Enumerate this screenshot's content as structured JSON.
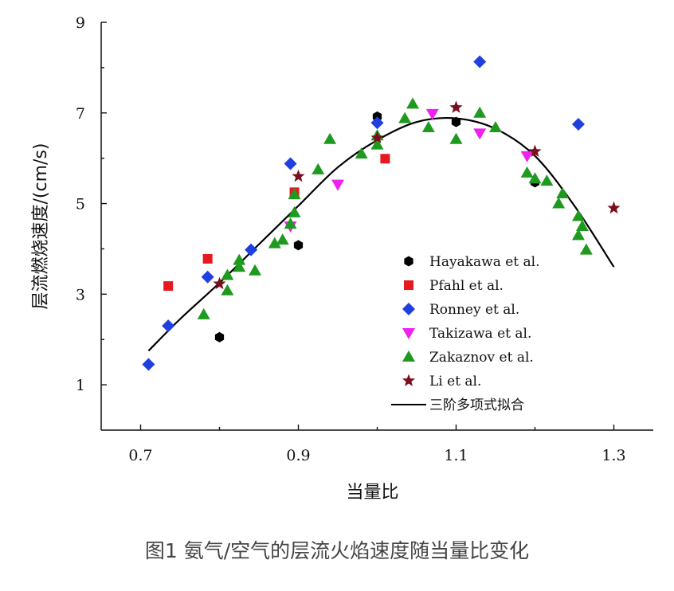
{
  "caption": "图1 氨气/空气的层流火焰速度随当量比变化",
  "chart_data": {
    "type": "scatter",
    "xlabel": "当量比",
    "ylabel": "层流燃烧速度/(cm/s)",
    "xlim": [
      0.65,
      1.35
    ],
    "ylim": [
      0,
      9
    ],
    "xticks": [
      "0.7",
      "0.9",
      "1.1",
      "1.3"
    ],
    "yticks": [
      "1",
      "3",
      "5",
      "7",
      "9"
    ],
    "legend_position": "bottom-right",
    "series": [
      {
        "name": "Hayakawa et al.",
        "marker": "hexagon",
        "color": "#000000",
        "points": [
          [
            0.8,
            2.05
          ],
          [
            0.9,
            4.08
          ],
          [
            1.0,
            6.92
          ],
          [
            1.1,
            6.8
          ],
          [
            1.2,
            5.47
          ]
        ]
      },
      {
        "name": "Pfahl et al.",
        "marker": "square",
        "color": "#e5191e",
        "points": [
          [
            0.735,
            3.18
          ],
          [
            0.785,
            3.78
          ],
          [
            0.895,
            5.25
          ],
          [
            1.01,
            5.99
          ]
        ]
      },
      {
        "name": "Ronney et al.",
        "marker": "diamond",
        "color": "#1f3fe0",
        "points": [
          [
            0.71,
            1.45
          ],
          [
            0.735,
            2.3
          ],
          [
            0.785,
            3.38
          ],
          [
            0.84,
            3.98
          ],
          [
            0.89,
            5.88
          ],
          [
            1.0,
            6.78
          ],
          [
            1.13,
            8.13
          ],
          [
            1.255,
            6.75
          ]
        ]
      },
      {
        "name": "Takizawa et al.",
        "marker": "triangle-down",
        "color": "#ee22ee",
        "points": [
          [
            0.89,
            4.5
          ],
          [
            0.95,
            5.42
          ],
          [
            1.07,
            6.98
          ],
          [
            1.13,
            6.55
          ],
          [
            1.19,
            6.05
          ]
        ]
      },
      {
        "name": "Zakaznov et al.",
        "marker": "triangle-up",
        "color": "#1e9a1e",
        "points": [
          [
            0.78,
            2.55
          ],
          [
            0.81,
            3.08
          ],
          [
            0.81,
            3.42
          ],
          [
            0.825,
            3.6
          ],
          [
            0.825,
            3.75
          ],
          [
            0.845,
            3.52
          ],
          [
            0.87,
            4.12
          ],
          [
            0.88,
            4.2
          ],
          [
            0.89,
            4.55
          ],
          [
            0.895,
            4.8
          ],
          [
            0.895,
            5.2
          ],
          [
            0.925,
            5.75
          ],
          [
            0.94,
            6.42
          ],
          [
            0.98,
            6.1
          ],
          [
            1.0,
            6.3
          ],
          [
            1.0,
            6.5
          ],
          [
            1.035,
            6.88
          ],
          [
            1.045,
            7.2
          ],
          [
            1.065,
            6.68
          ],
          [
            1.1,
            6.42
          ],
          [
            1.13,
            7.0
          ],
          [
            1.15,
            6.68
          ],
          [
            1.19,
            5.68
          ],
          [
            1.2,
            5.55
          ],
          [
            1.215,
            5.5
          ],
          [
            1.23,
            5.0
          ],
          [
            1.235,
            5.22
          ],
          [
            1.255,
            4.72
          ],
          [
            1.255,
            4.3
          ],
          [
            1.26,
            4.5
          ],
          [
            1.265,
            3.98
          ]
        ]
      },
      {
        "name": "Li et al.",
        "marker": "star",
        "color": "#7a0f1e",
        "points": [
          [
            0.8,
            3.23
          ],
          [
            0.9,
            5.6
          ],
          [
            1.0,
            6.45
          ],
          [
            1.1,
            7.12
          ],
          [
            1.2,
            6.15
          ],
          [
            1.3,
            4.9
          ]
        ]
      }
    ],
    "fit": {
      "name": "三阶多项式拟合",
      "color": "#000000",
      "x": [
        0.71,
        0.75,
        0.8,
        0.85,
        0.9,
        0.95,
        1.0,
        1.05,
        1.1,
        1.15,
        1.2,
        1.25,
        1.3
      ],
      "y": [
        1.75,
        2.45,
        3.25,
        4.1,
        4.95,
        5.8,
        6.4,
        6.8,
        6.88,
        6.65,
        6.05,
        4.95,
        3.6
      ]
    }
  }
}
